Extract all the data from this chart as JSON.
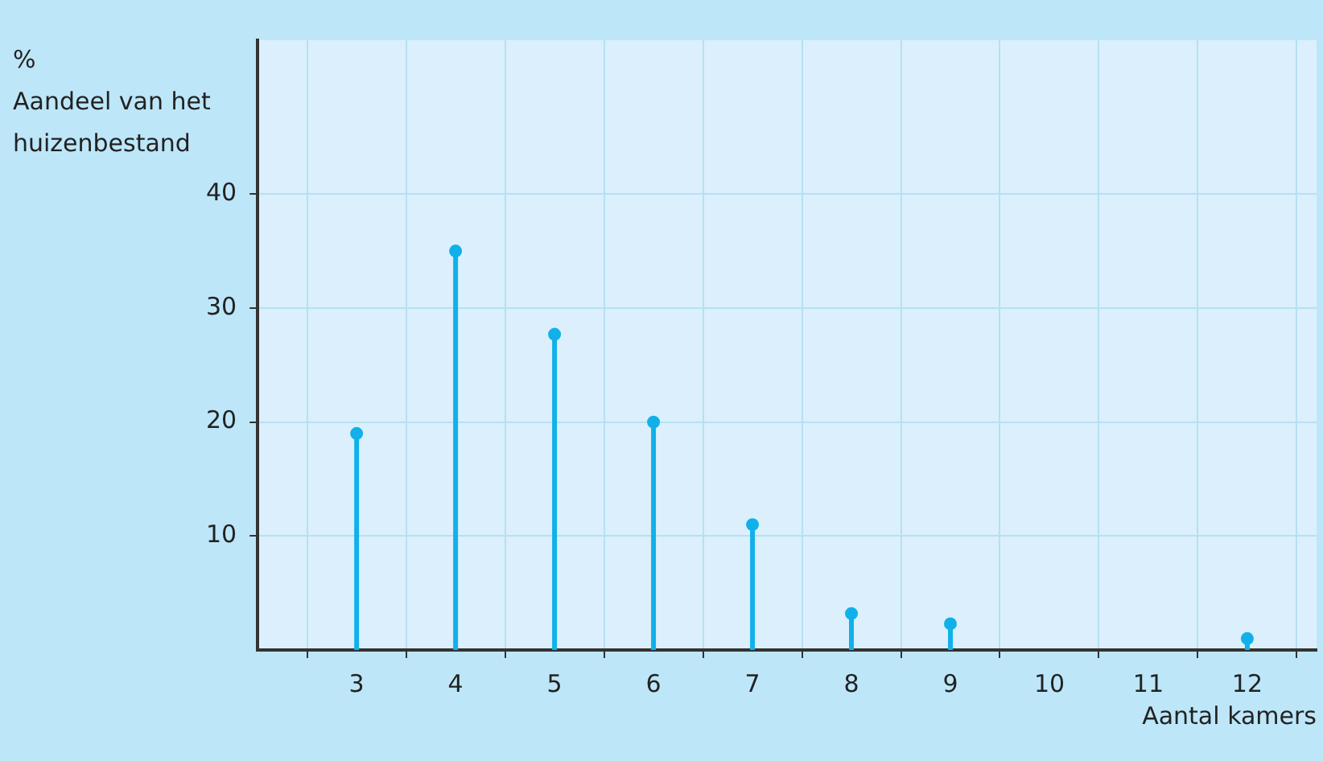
{
  "chart_data": {
    "type": "lollipop",
    "xlabel": "Aantal kamers",
    "ylabel": "%\nAandeel van het\nhuizenbestand",
    "x": [
      3,
      4,
      5,
      6,
      7,
      8,
      9,
      12
    ],
    "values": [
      19,
      35,
      27.7,
      20,
      11,
      3.2,
      2.3,
      1
    ],
    "color": "#12b0ea",
    "marker": "circle",
    "xlim": [
      2,
      12.7
    ],
    "xticks": [
      3,
      4,
      5,
      6,
      7,
      8,
      9,
      10,
      11,
      12
    ],
    "ylim": [
      0,
      53.5
    ],
    "yticks": [
      10,
      20,
      30,
      40
    ],
    "grid": true,
    "legend": false
  }
}
